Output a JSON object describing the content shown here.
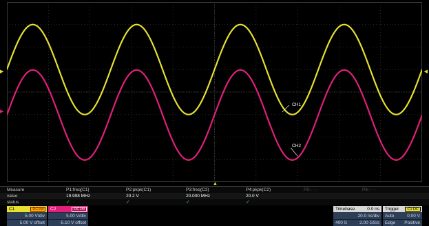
{
  "colors": {
    "background": "#000000",
    "grid": "#3a3a3a",
    "channel1": "#e6e030",
    "channel2": "#e0207a",
    "check": "#3ed23e"
  },
  "markers": {
    "c1": "▶",
    "c2": "▶",
    "trigger_level": "◀",
    "trigger_position": "▲"
  },
  "traces": {
    "ch1_label": "CH1",
    "ch2_label": "CH2",
    "frequency_mhz": 20.0,
    "ch1_pkpk_v": 20.0,
    "ch2_pkpk_v": 20.0
  },
  "measure": {
    "row_labels": {
      "header": "Measure",
      "value": "value",
      "status": "status"
    },
    "params": [
      {
        "name": "P1:freq(C1)",
        "value": "19.998 MHz",
        "status": "✓"
      },
      {
        "name": "P2:pkpk(C1)",
        "value": "20.2 V",
        "status": "✓"
      },
      {
        "name": "P3:freq(C2)",
        "value": "20.000 MHz",
        "status": "✓"
      },
      {
        "name": "P4:pkpk(C2)",
        "value": "20.0 V",
        "status": "✓"
      },
      {
        "name": "P5:- - -",
        "value": "",
        "status": ""
      },
      {
        "name": "P6:- - -",
        "value": "",
        "status": ""
      }
    ]
  },
  "channels": {
    "c1": {
      "label": "C1",
      "coupling": "DC1M",
      "vdiv": "5.00 V/div",
      "offset": "5.00 V offset"
    },
    "c2": {
      "label": "C2",
      "coupling": "DC1M",
      "vdiv": "5.00 V/div",
      "offset": "-5.10 V offset"
    }
  },
  "timebase": {
    "label": "Timebase",
    "delay": "0.0 ns",
    "tdiv": "20.0 ns/div",
    "samples": "400 S",
    "rate": "2.00 GS/s"
  },
  "trigger": {
    "label": "Trigger",
    "source": "C1 DC",
    "mode": "Auto",
    "level": "0.00 V",
    "type": "Edge",
    "slope": "Positive"
  }
}
